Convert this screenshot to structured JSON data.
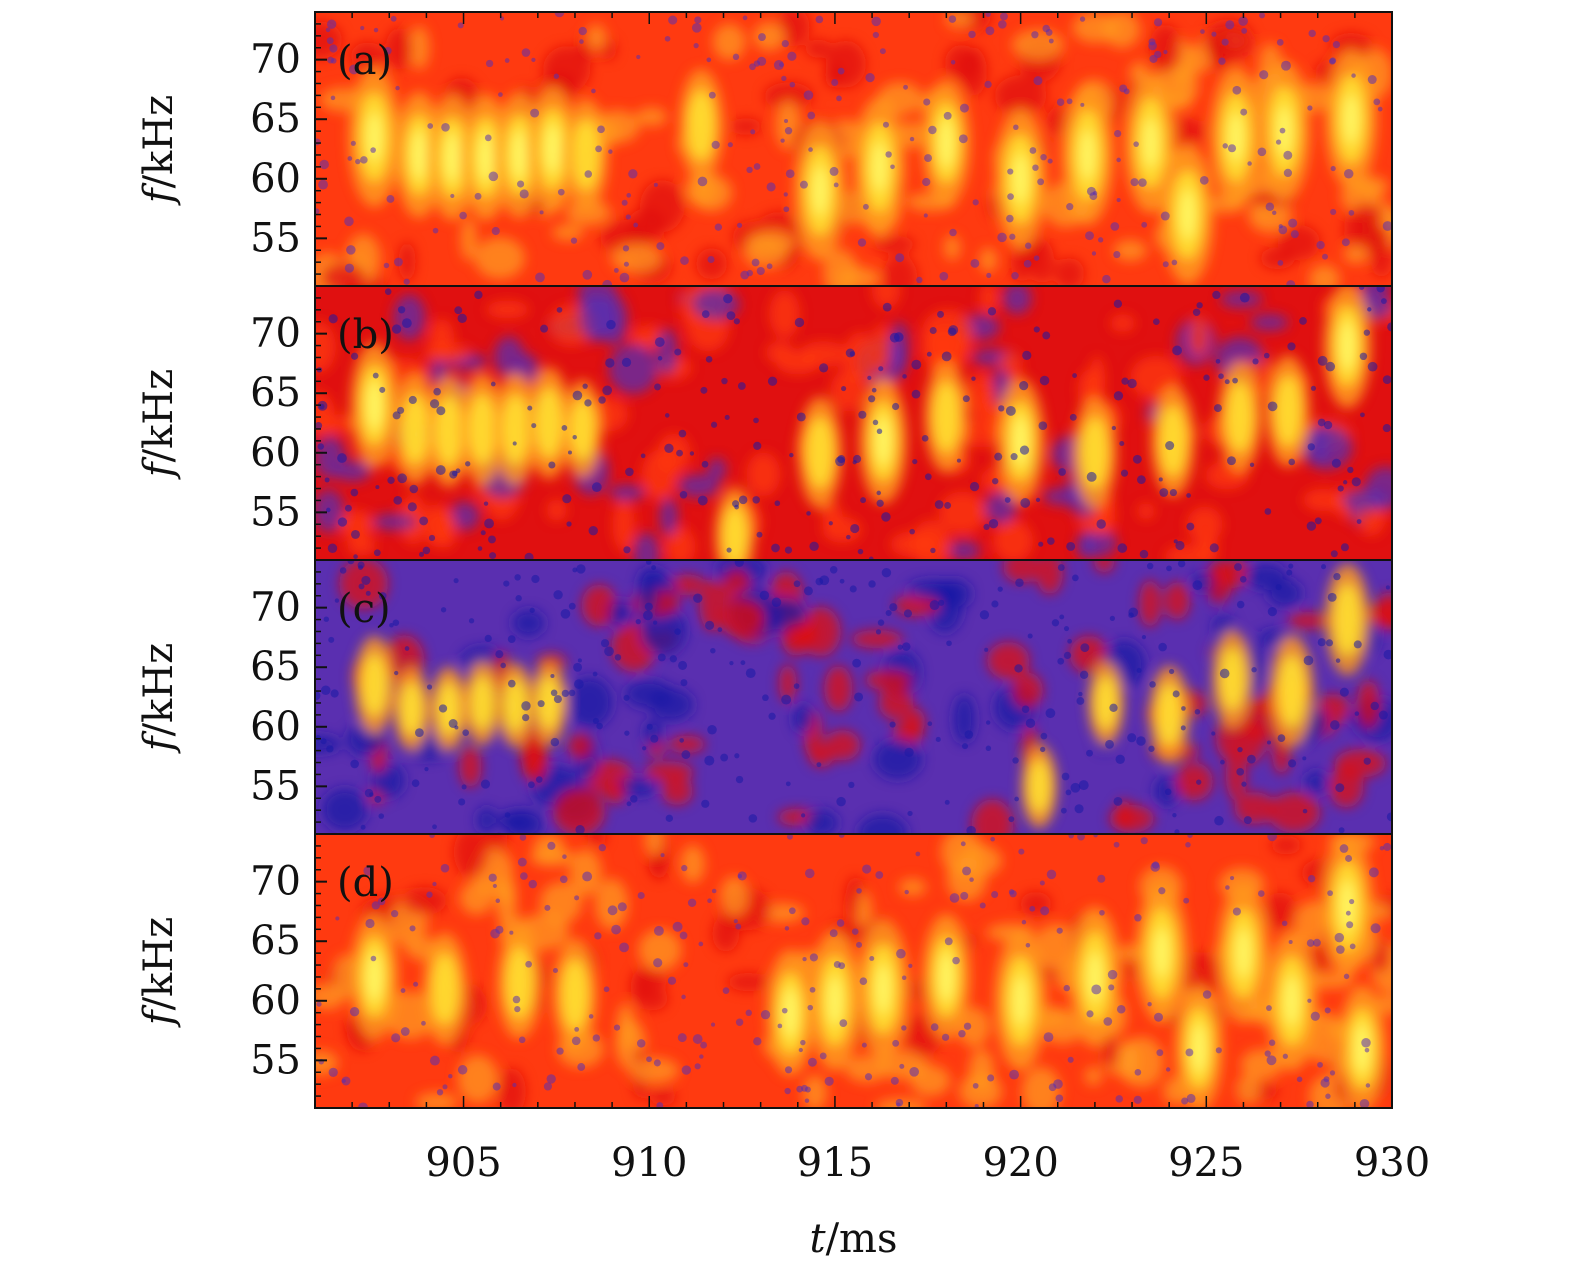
{
  "chart_data": [
    {
      "type": "heatmap",
      "panel_label": "(a)",
      "xlim": [
        901,
        930
      ],
      "ylim": [
        51,
        74
      ],
      "ylabel": {
        "var": "f",
        "unit": "/kHz"
      },
      "yticks": [
        55,
        60,
        65,
        70
      ],
      "intensity": "high",
      "features": [
        {
          "t": 902.6,
          "f": 63.5,
          "strength": 1.0
        },
        {
          "t": 903.8,
          "f": 62.0,
          "strength": 0.9
        },
        {
          "t": 904.7,
          "f": 61.8,
          "strength": 0.9
        },
        {
          "t": 905.6,
          "f": 61.8,
          "strength": 0.9
        },
        {
          "t": 906.5,
          "f": 62.0,
          "strength": 0.9
        },
        {
          "t": 907.4,
          "f": 62.5,
          "strength": 0.9
        },
        {
          "t": 908.3,
          "f": 62.0,
          "strength": 0.8
        },
        {
          "t": 911.4,
          "f": 64.5,
          "strength": 0.8
        },
        {
          "t": 914.6,
          "f": 59.0,
          "strength": 1.0
        },
        {
          "t": 916.2,
          "f": 61.0,
          "strength": 1.0
        },
        {
          "t": 918.0,
          "f": 63.0,
          "strength": 0.9
        },
        {
          "t": 920.0,
          "f": 60.0,
          "strength": 1.0
        },
        {
          "t": 921.8,
          "f": 62.0,
          "strength": 1.0
        },
        {
          "t": 923.5,
          "f": 63.0,
          "strength": 1.0
        },
        {
          "t": 924.5,
          "f": 57.0,
          "strength": 1.0
        },
        {
          "t": 925.8,
          "f": 63.5,
          "strength": 1.0
        },
        {
          "t": 927.1,
          "f": 64.0,
          "strength": 1.0
        },
        {
          "t": 928.9,
          "f": 65.0,
          "strength": 1.0
        }
      ]
    },
    {
      "type": "heatmap",
      "panel_label": "(b)",
      "xlim": [
        901,
        930
      ],
      "ylim": [
        51,
        74
      ],
      "ylabel": {
        "var": "f",
        "unit": "/kHz"
      },
      "yticks": [
        55,
        60,
        65,
        70
      ],
      "intensity": "medium",
      "features": [
        {
          "t": 902.6,
          "f": 64.0,
          "strength": 0.9
        },
        {
          "t": 903.7,
          "f": 62.0,
          "strength": 0.8
        },
        {
          "t": 904.6,
          "f": 61.8,
          "strength": 0.8
        },
        {
          "t": 905.5,
          "f": 62.0,
          "strength": 0.8
        },
        {
          "t": 906.4,
          "f": 62.0,
          "strength": 0.8
        },
        {
          "t": 907.3,
          "f": 62.5,
          "strength": 0.8
        },
        {
          "t": 908.2,
          "f": 62.0,
          "strength": 0.7
        },
        {
          "t": 912.3,
          "f": 53.0,
          "strength": 0.7
        },
        {
          "t": 914.6,
          "f": 60.0,
          "strength": 0.8
        },
        {
          "t": 916.3,
          "f": 61.0,
          "strength": 0.9
        },
        {
          "t": 918.0,
          "f": 63.0,
          "strength": 0.8
        },
        {
          "t": 920.0,
          "f": 61.0,
          "strength": 0.9
        },
        {
          "t": 922.0,
          "f": 60.0,
          "strength": 0.8
        },
        {
          "t": 924.1,
          "f": 61.0,
          "strength": 0.8
        },
        {
          "t": 925.9,
          "f": 63.0,
          "strength": 0.8
        },
        {
          "t": 927.2,
          "f": 63.5,
          "strength": 0.8
        },
        {
          "t": 928.8,
          "f": 69.0,
          "strength": 0.9
        }
      ]
    },
    {
      "type": "heatmap",
      "panel_label": "(c)",
      "xlim": [
        901,
        930
      ],
      "ylim": [
        51,
        74
      ],
      "ylabel": {
        "var": "f",
        "unit": "/kHz"
      },
      "yticks": [
        55,
        60,
        65,
        70
      ],
      "intensity": "low",
      "features": [
        {
          "t": 902.6,
          "f": 63.5,
          "strength": 0.7
        },
        {
          "t": 903.6,
          "f": 61.5,
          "strength": 0.6
        },
        {
          "t": 904.6,
          "f": 61.5,
          "strength": 0.6
        },
        {
          "t": 905.5,
          "f": 62.0,
          "strength": 0.6
        },
        {
          "t": 906.4,
          "f": 61.8,
          "strength": 0.6
        },
        {
          "t": 907.3,
          "f": 62.0,
          "strength": 0.6
        },
        {
          "t": 920.5,
          "f": 55.0,
          "strength": 0.6
        },
        {
          "t": 922.3,
          "f": 62.0,
          "strength": 0.6
        },
        {
          "t": 924.0,
          "f": 61.0,
          "strength": 0.7
        },
        {
          "t": 925.7,
          "f": 64.0,
          "strength": 0.7
        },
        {
          "t": 927.3,
          "f": 63.0,
          "strength": 0.8
        },
        {
          "t": 928.8,
          "f": 69.0,
          "strength": 0.8
        }
      ]
    },
    {
      "type": "heatmap",
      "panel_label": "(d)",
      "xlim": [
        901,
        930
      ],
      "ylim": [
        51,
        74
      ],
      "ylabel": {
        "var": "f",
        "unit": "/kHz"
      },
      "yticks": [
        55,
        60,
        65,
        70
      ],
      "xlabel": {
        "var": "t",
        "unit": "/ms"
      },
      "xticks": [
        905,
        910,
        915,
        920,
        925,
        930
      ],
      "intensity": "high",
      "features": [
        {
          "t": 902.6,
          "f": 62.0,
          "strength": 0.9
        },
        {
          "t": 904.5,
          "f": 61.0,
          "strength": 0.8
        },
        {
          "t": 906.5,
          "f": 61.5,
          "strength": 0.8
        },
        {
          "t": 908.0,
          "f": 60.5,
          "strength": 0.8
        },
        {
          "t": 913.8,
          "f": 59.0,
          "strength": 0.9
        },
        {
          "t": 915.0,
          "f": 60.0,
          "strength": 1.0
        },
        {
          "t": 916.3,
          "f": 61.0,
          "strength": 1.0
        },
        {
          "t": 918.0,
          "f": 62.0,
          "strength": 0.9
        },
        {
          "t": 920.0,
          "f": 60.0,
          "strength": 1.0
        },
        {
          "t": 922.0,
          "f": 62.0,
          "strength": 1.0
        },
        {
          "t": 923.8,
          "f": 64.0,
          "strength": 1.0
        },
        {
          "t": 924.8,
          "f": 56.0,
          "strength": 0.9
        },
        {
          "t": 926.0,
          "f": 64.0,
          "strength": 1.0
        },
        {
          "t": 927.3,
          "f": 60.0,
          "strength": 1.0
        },
        {
          "t": 928.8,
          "f": 68.0,
          "strength": 1.0
        },
        {
          "t": 929.2,
          "f": 56.0,
          "strength": 0.9
        }
      ]
    }
  ],
  "colormap": [
    "#1a1aa6",
    "#5a2fb0",
    "#e01010",
    "#ff3a10",
    "#ff9a20",
    "#ffe030",
    "#ffff70"
  ]
}
